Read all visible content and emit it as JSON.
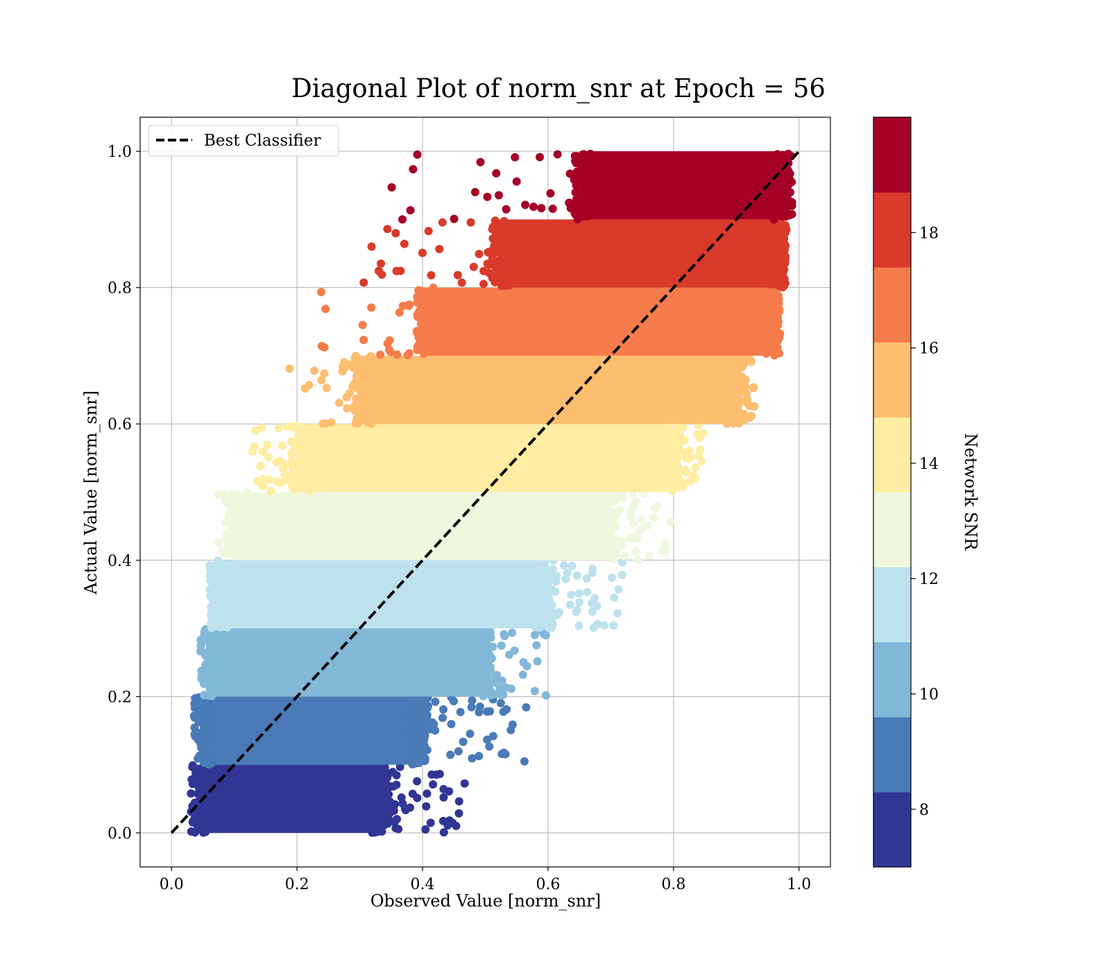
{
  "chart_data": {
    "type": "scatter",
    "title": "Diagonal Plot of norm_snr at Epoch = 56",
    "xlabel": "Observed Value [norm_snr]",
    "ylabel": "Actual Value [norm_snr]",
    "xlim": [
      -0.05,
      1.05
    ],
    "ylim": [
      -0.05,
      1.05
    ],
    "xticks": [
      "0.0",
      "0.2",
      "0.4",
      "0.6",
      "0.8",
      "1.0"
    ],
    "yticks": [
      "0.0",
      "0.2",
      "0.4",
      "0.6",
      "0.8",
      "1.0"
    ],
    "grid": true,
    "legend": {
      "position": "top-left",
      "entries": [
        "Best Classifier"
      ]
    },
    "reference_line": {
      "name": "Best Classifier",
      "style": "dashed",
      "color": "#000000",
      "points": [
        [
          0.0,
          0.0
        ],
        [
          1.0,
          1.0
        ]
      ]
    },
    "colorbar": {
      "label": "Network SNR",
      "range": [
        7.0,
        20.0
      ],
      "ticks": [
        "8",
        "10",
        "12",
        "14",
        "16",
        "18"
      ],
      "tick_values": [
        8,
        10,
        12,
        14,
        16,
        18
      ],
      "colors": [
        "#313695",
        "#4a7ab7",
        "#82b7d8",
        "#bde2ee",
        "#eff8df",
        "#feeda2",
        "#fdbe70",
        "#f57c4a",
        "#d93a2a",
        "#a50026"
      ]
    },
    "bands": [
      {
        "y_range": [
          0.0,
          0.1
        ],
        "x_core": [
          0.04,
          0.34
        ],
        "x_outliers_max": 0.47,
        "color": "#313695"
      },
      {
        "y_range": [
          0.1,
          0.2
        ],
        "x_core": [
          0.045,
          0.4
        ],
        "x_outliers_max": 0.57,
        "color": "#4a7ab7"
      },
      {
        "y_range": [
          0.2,
          0.3
        ],
        "x_core": [
          0.055,
          0.5
        ],
        "x_outliers_max": 0.6,
        "color": "#82b7d8"
      },
      {
        "y_range": [
          0.3,
          0.4
        ],
        "x_core": [
          0.07,
          0.6
        ],
        "x_outliers_max": 0.72,
        "color": "#bde2ee"
      },
      {
        "y_range": [
          0.4,
          0.5
        ],
        "x_core": [
          0.1,
          0.7
        ],
        "x_outliers_max": 0.8,
        "color": "#eff8df"
      },
      {
        "y_range": [
          0.5,
          0.6
        ],
        "x_core": [
          0.2,
          0.8
        ],
        "x_outliers_max": 0.85,
        "color": "#feeda2"
      },
      {
        "y_range": [
          0.6,
          0.7
        ],
        "x_core": [
          0.3,
          0.9
        ],
        "x_outliers_max": 0.93,
        "color": "#fdbe70"
      },
      {
        "y_range": [
          0.7,
          0.8
        ],
        "x_core": [
          0.4,
          0.96
        ],
        "x_outliers_max": 0.97,
        "color": "#f57c4a"
      },
      {
        "y_range": [
          0.8,
          0.9
        ],
        "x_core": [
          0.52,
          0.97
        ],
        "x_outliers_max": 0.98,
        "color": "#d93a2a"
      },
      {
        "y_range": [
          0.9,
          1.0
        ],
        "x_core": [
          0.65,
          0.98
        ],
        "x_outliers_max": 0.98,
        "color": "#a50026"
      }
    ]
  }
}
